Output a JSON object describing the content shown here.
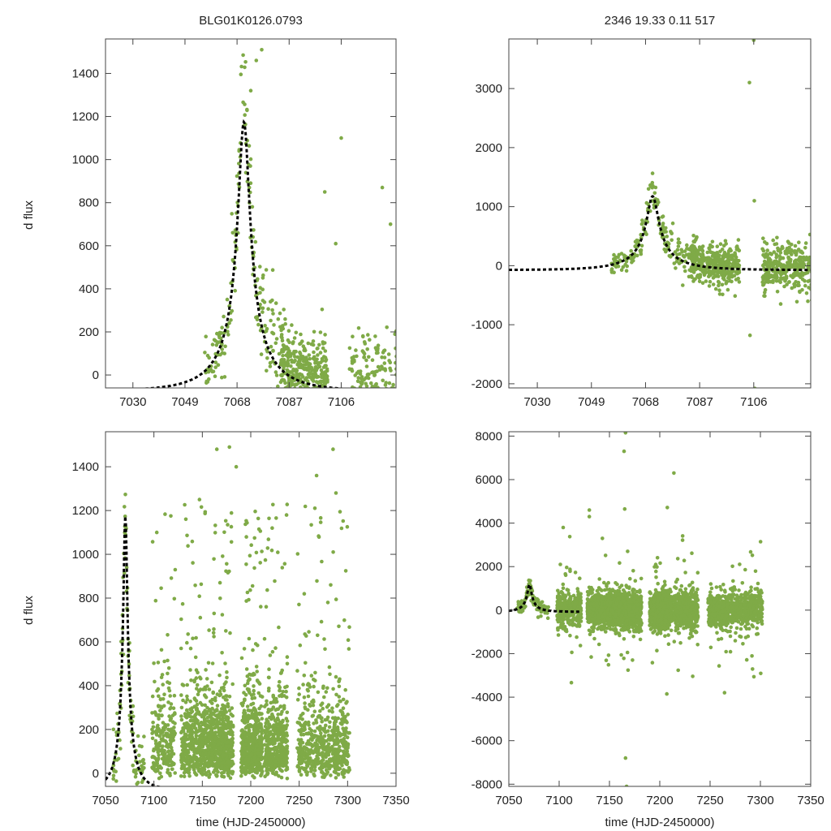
{
  "figure": {
    "left_title": "BLG01K0126.0793",
    "right_title": "2346  19.33  0.11  517",
    "ylabel": "d flux",
    "xlabel": "time (HJD-2450000)"
  },
  "colors": {
    "points": "#7faa47",
    "model": "#000000",
    "axes": "#444444",
    "text": "#222222"
  },
  "chart_data": [
    {
      "id": "top-left",
      "type": "scatter",
      "title": "BLG01K0126.0793",
      "xlabel": "",
      "ylabel": "d flux",
      "xlim": [
        7020,
        7126
      ],
      "ylim": [
        -60,
        1560
      ],
      "xticks": [
        7030,
        7049,
        7068,
        7087,
        7106
      ],
      "xtick_labels": [
        "7030",
        "7049",
        "7068",
        "7087",
        "7106"
      ],
      "yticks": [
        0,
        200,
        400,
        600,
        800,
        1000,
        1200,
        1400
      ],
      "ytick_labels": [
        "0",
        "200",
        "400",
        "600",
        "800",
        "1000",
        "1200",
        "1400"
      ],
      "model": {
        "t0": 7070.5,
        "u0": 0.11,
        "tE": 19.33,
        "peak": 1175,
        "baseline": -75
      },
      "points_approx": 700,
      "seed": 11
    },
    {
      "id": "top-right",
      "type": "scatter",
      "title": "2346  19.33  0.11  517",
      "xlabel": "",
      "ylabel": "",
      "xlim": [
        7020,
        7126
      ],
      "ylim": [
        -2070,
        3840
      ],
      "xticks": [
        7030,
        7049,
        7068,
        7087,
        7106
      ],
      "xtick_labels": [
        "7030",
        "7049",
        "7068",
        "7087",
        "7106"
      ],
      "yticks": [
        -2000,
        -1000,
        0,
        1000,
        2000,
        3000
      ],
      "ytick_labels": [
        "-2000",
        "-1000",
        "0",
        "1000",
        "2000",
        "3000"
      ],
      "model": {
        "t0": 7070.5,
        "u0": 0.11,
        "tE": 19.33,
        "peak": 1175,
        "baseline": -75
      },
      "points_approx": 900,
      "seed": 23
    },
    {
      "id": "bottom-left",
      "type": "scatter",
      "title": "",
      "xlabel": "time (HJD-2450000)",
      "ylabel": "d flux",
      "xlim": [
        7050,
        7350
      ],
      "ylim": [
        -60,
        1560
      ],
      "xticks": [
        7050,
        7100,
        7150,
        7200,
        7250,
        7300,
        7350
      ],
      "xtick_labels": [
        "7050",
        "7100",
        "7150",
        "7200",
        "7250",
        "7300",
        "7350"
      ],
      "yticks": [
        0,
        200,
        400,
        600,
        800,
        1000,
        1200,
        1400
      ],
      "ytick_labels": [
        "0",
        "200",
        "400",
        "600",
        "800",
        "1000",
        "1200",
        "1400"
      ],
      "model": {
        "t0": 7070.5,
        "u0": 0.11,
        "tE": 19.33,
        "peak": 1175,
        "baseline": -75
      },
      "points_approx": 2300,
      "seed": 37
    },
    {
      "id": "bottom-right",
      "type": "scatter",
      "title": "",
      "xlabel": "time (HJD-2450000)",
      "ylabel": "",
      "xlim": [
        7050,
        7350
      ],
      "ylim": [
        -8100,
        8200
      ],
      "xticks": [
        7050,
        7100,
        7150,
        7200,
        7250,
        7300,
        7350
      ],
      "xtick_labels": [
        "7050",
        "7100",
        "7150",
        "7200",
        "7250",
        "7300",
        "7350"
      ],
      "yticks": [
        -8000,
        -6000,
        -4000,
        -2000,
        0,
        2000,
        4000,
        6000,
        8000
      ],
      "ytick_labels": [
        "-8000",
        "-6000",
        "-4000",
        "-2000",
        "0",
        "2000",
        "4000",
        "6000",
        "8000"
      ],
      "model": {
        "t0": 7070.5,
        "u0": 0.11,
        "tE": 19.33,
        "peak": 1175,
        "baseline": -75,
        "t_end": 7120
      },
      "points_approx": 3000,
      "seed": 53
    }
  ]
}
